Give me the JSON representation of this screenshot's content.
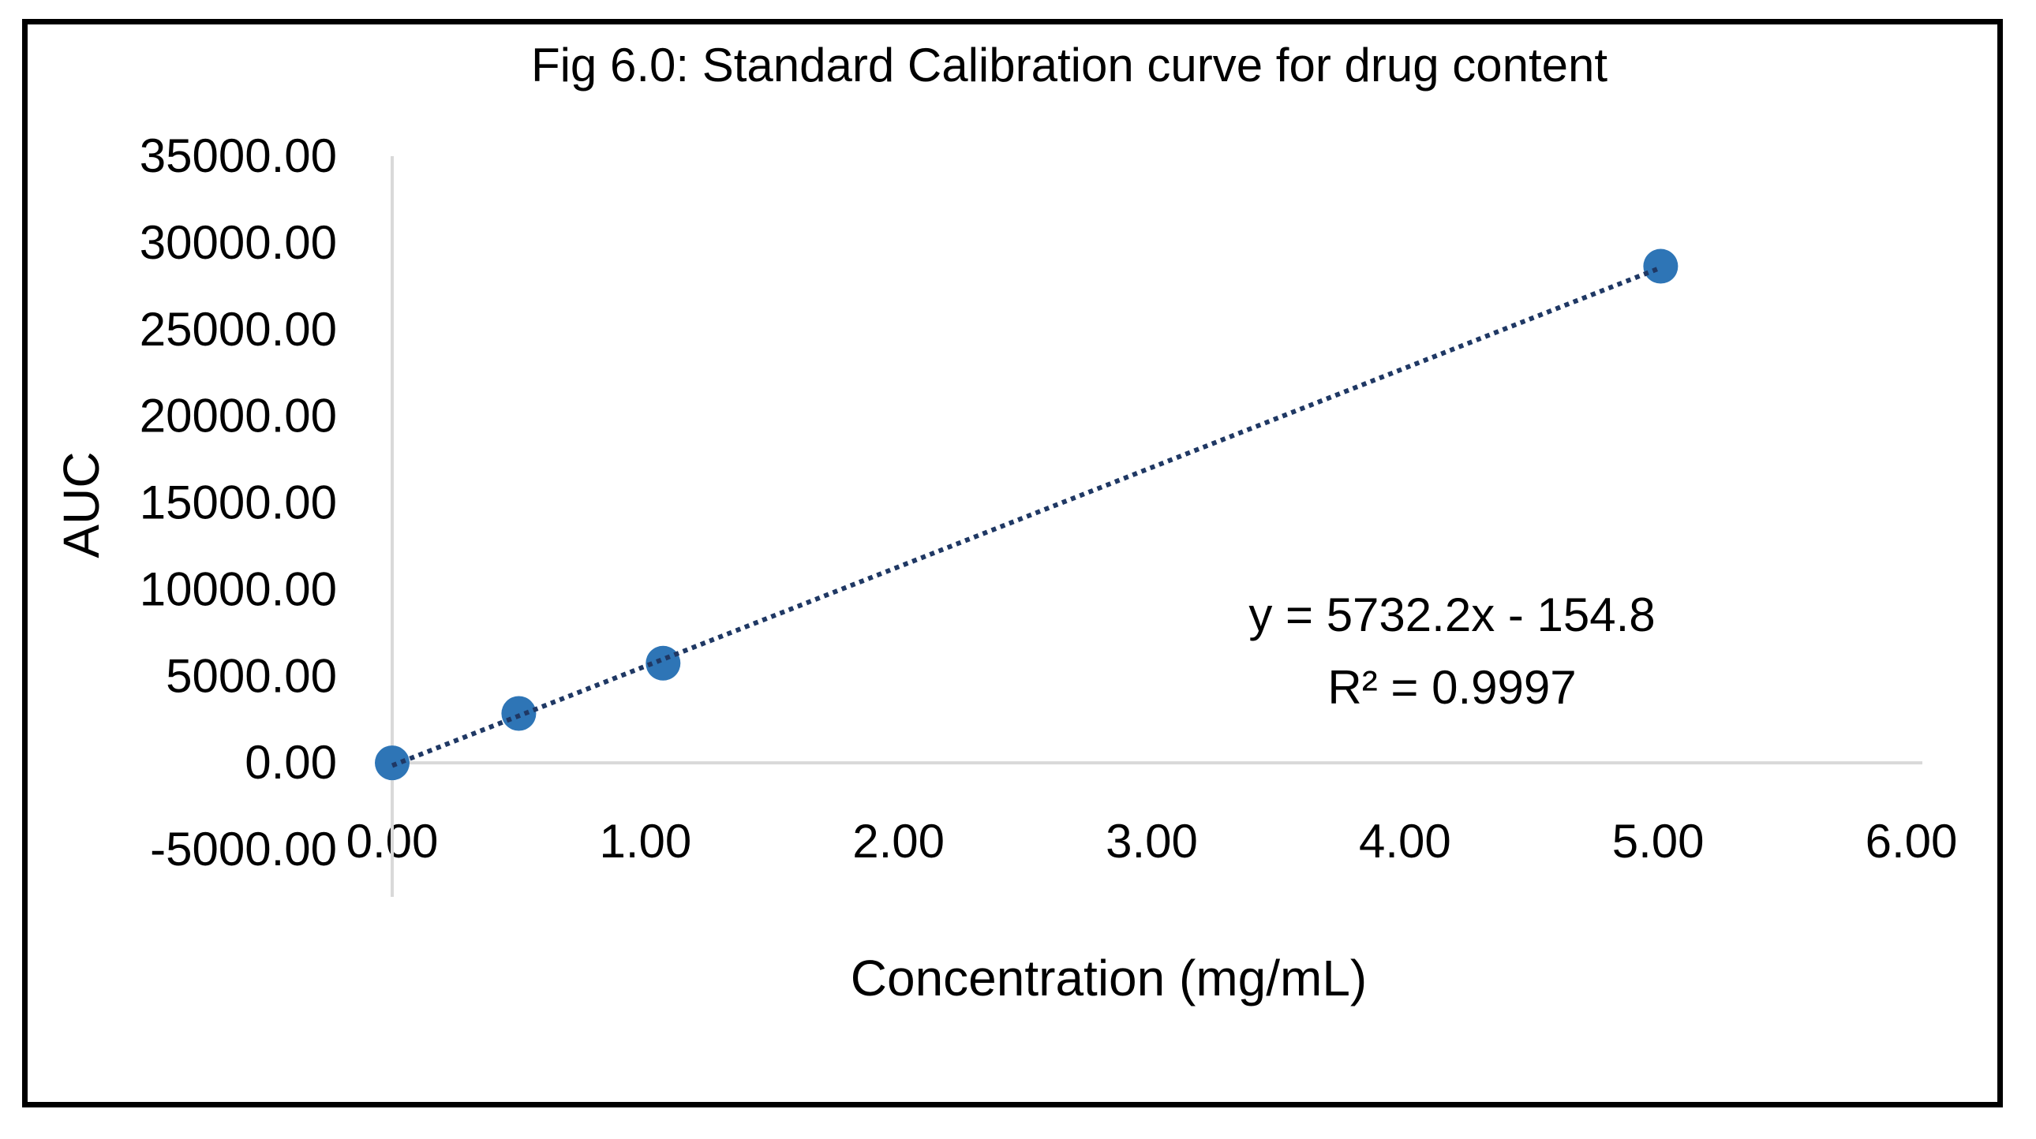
{
  "chart_data": {
    "type": "scatter",
    "title": "Fig 6.0: Standard Calibration curve for drug content",
    "xlabel": "Concentration (mg/mL)",
    "ylabel": "AUC",
    "xlim": [
      0,
      6
    ],
    "ylim": [
      -5000,
      35000
    ],
    "x_ticks": [
      0,
      1,
      2,
      3,
      4,
      5,
      6
    ],
    "x_tick_labels": [
      "0.00",
      "1.00",
      "2.00",
      "3.00",
      "4.00",
      "5.00",
      "6.00"
    ],
    "y_ticks": [
      35000,
      30000,
      25000,
      20000,
      15000,
      10000,
      5000,
      0,
      -5000
    ],
    "y_tick_labels": [
      "35000.00",
      "30000.00",
      "25000.00",
      "20000.00",
      "15000.00",
      "10000.00",
      "5000.00",
      "0.00",
      "-5000.00"
    ],
    "grid": false,
    "legend": "none",
    "series": [
      {
        "x": [
          0,
          0.5,
          1.07,
          5.01
        ],
        "y": [
          0,
          2850,
          5750,
          28650
        ],
        "color": "#2E75B6",
        "marker": "circle"
      }
    ],
    "trendline": {
      "type": "linear",
      "slope": 5732.2,
      "intercept": -154.8,
      "x_range": [
        0,
        5.01
      ],
      "style": "dotted",
      "color": "#1F3864",
      "equation": "y = 5732.2x - 154.8",
      "r_squared": "R² = 0.9997"
    },
    "axis_color": "#D9D9D9"
  }
}
